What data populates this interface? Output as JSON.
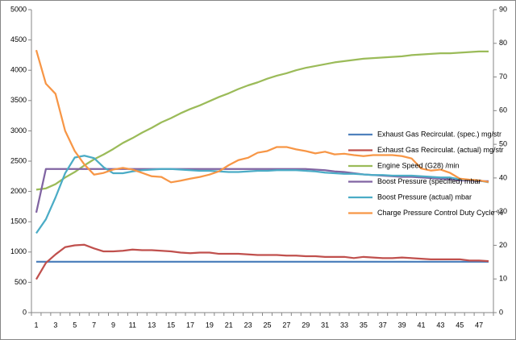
{
  "chart_data": {
    "type": "line",
    "categories": [
      1,
      null,
      3,
      null,
      5,
      null,
      7,
      null,
      9,
      null,
      11,
      null,
      13,
      null,
      15,
      null,
      17,
      null,
      19,
      null,
      21,
      null,
      23,
      null,
      25,
      null,
      27,
      null,
      29,
      null,
      31,
      null,
      33,
      null,
      35,
      null,
      37,
      null,
      39,
      null,
      41,
      null,
      43,
      null,
      45,
      null,
      47,
      null
    ],
    "ylim": [
      0,
      5000
    ],
    "yticks": [
      0,
      500,
      1000,
      1500,
      2000,
      2500,
      3000,
      3500,
      4000,
      4500,
      5000
    ],
    "y2lim": [
      0,
      90
    ],
    "y2ticks": [
      0,
      10,
      20,
      30,
      40,
      50,
      60,
      70,
      80,
      90
    ],
    "legend": "right",
    "series": [
      {
        "name": "Exhaust Gas Recirculat. (spec.)  mg/str",
        "color": "#4F81BD",
        "values": [
          840,
          840,
          840,
          840,
          840,
          840,
          840,
          840,
          840,
          840,
          840,
          840,
          840,
          840,
          840,
          840,
          840,
          840,
          840,
          840,
          840,
          840,
          840,
          840,
          840,
          840,
          840,
          840,
          840,
          840,
          840,
          840,
          840,
          840,
          840,
          840,
          840,
          840,
          840,
          840,
          840,
          840,
          840,
          840,
          840,
          840,
          840,
          840
        ]
      },
      {
        "name": "Exhaust Gas Recirculat. (actual)  mg/str",
        "color": "#C0504D",
        "values": [
          550,
          820,
          960,
          1080,
          1110,
          1120,
          1060,
          1010,
          1010,
          1020,
          1040,
          1030,
          1030,
          1020,
          1010,
          990,
          980,
          990,
          990,
          970,
          970,
          970,
          960,
          950,
          950,
          950,
          940,
          940,
          930,
          930,
          920,
          920,
          920,
          900,
          920,
          910,
          900,
          900,
          910,
          900,
          890,
          880,
          880,
          880,
          880,
          860,
          860,
          850
        ]
      },
      {
        "name": "Engine Speed (G28)  /min",
        "color": "#9BBB59",
        "values": [
          2030,
          2050,
          2120,
          2230,
          2320,
          2430,
          2530,
          2610,
          2700,
          2800,
          2880,
          2970,
          3050,
          3140,
          3210,
          3290,
          3360,
          3420,
          3490,
          3560,
          3620,
          3690,
          3750,
          3800,
          3860,
          3910,
          3950,
          4000,
          4040,
          4070,
          4100,
          4130,
          4150,
          4170,
          4190,
          4200,
          4210,
          4220,
          4230,
          4250,
          4260,
          4270,
          4280,
          4280,
          4290,
          4300,
          4310,
          4310
        ]
      },
      {
        "name": "Boost Pressure (specified)  mbar",
        "color": "#8064A2",
        "values": [
          1650,
          2370,
          2370,
          2370,
          2370,
          2370,
          2370,
          2370,
          2370,
          2370,
          2370,
          2370,
          2370,
          2370,
          2370,
          2370,
          2370,
          2370,
          2370,
          2370,
          2370,
          2370,
          2370,
          2370,
          2370,
          2370,
          2370,
          2370,
          2370,
          2360,
          2350,
          2330,
          2320,
          2300,
          2280,
          2270,
          2260,
          2250,
          2240,
          2240,
          2230,
          2220,
          2210,
          2200,
          2180,
          2180,
          2170,
          2170
        ]
      },
      {
        "name": "Boost Pressure (actual)  mbar",
        "color": "#4BACC6",
        "values": [
          1310,
          1540,
          1900,
          2300,
          2560,
          2590,
          2550,
          2400,
          2300,
          2300,
          2330,
          2350,
          2360,
          2370,
          2370,
          2360,
          2350,
          2340,
          2340,
          2330,
          2320,
          2320,
          2330,
          2340,
          2340,
          2350,
          2350,
          2350,
          2340,
          2330,
          2310,
          2300,
          2290,
          2290,
          2280,
          2270,
          2270,
          2260,
          2260,
          2260,
          2250,
          2240,
          2230,
          2230,
          2200,
          2190,
          2180,
          2150
        ]
      },
      {
        "name": "Charge Pressure Control Duty Cycle  %",
        "color": "#F79646",
        "axis": "y2",
        "values": [
          78,
          68,
          65,
          54,
          48,
          44,
          41,
          41.5,
          42.5,
          43,
          42.5,
          41.5,
          40.5,
          40.3,
          38.7,
          39.2,
          39.8,
          40.3,
          41,
          42,
          43.8,
          45.3,
          46,
          47.5,
          48,
          49.2,
          49.2,
          48.5,
          48,
          47.3,
          47.8,
          47,
          47.2,
          46.8,
          46.5,
          46.8,
          46.8,
          46.8,
          46.5,
          45.8,
          42.8,
          42.2,
          42.5,
          41.5,
          39.8,
          39.5,
          39.3,
          38.8
        ]
      }
    ]
  }
}
